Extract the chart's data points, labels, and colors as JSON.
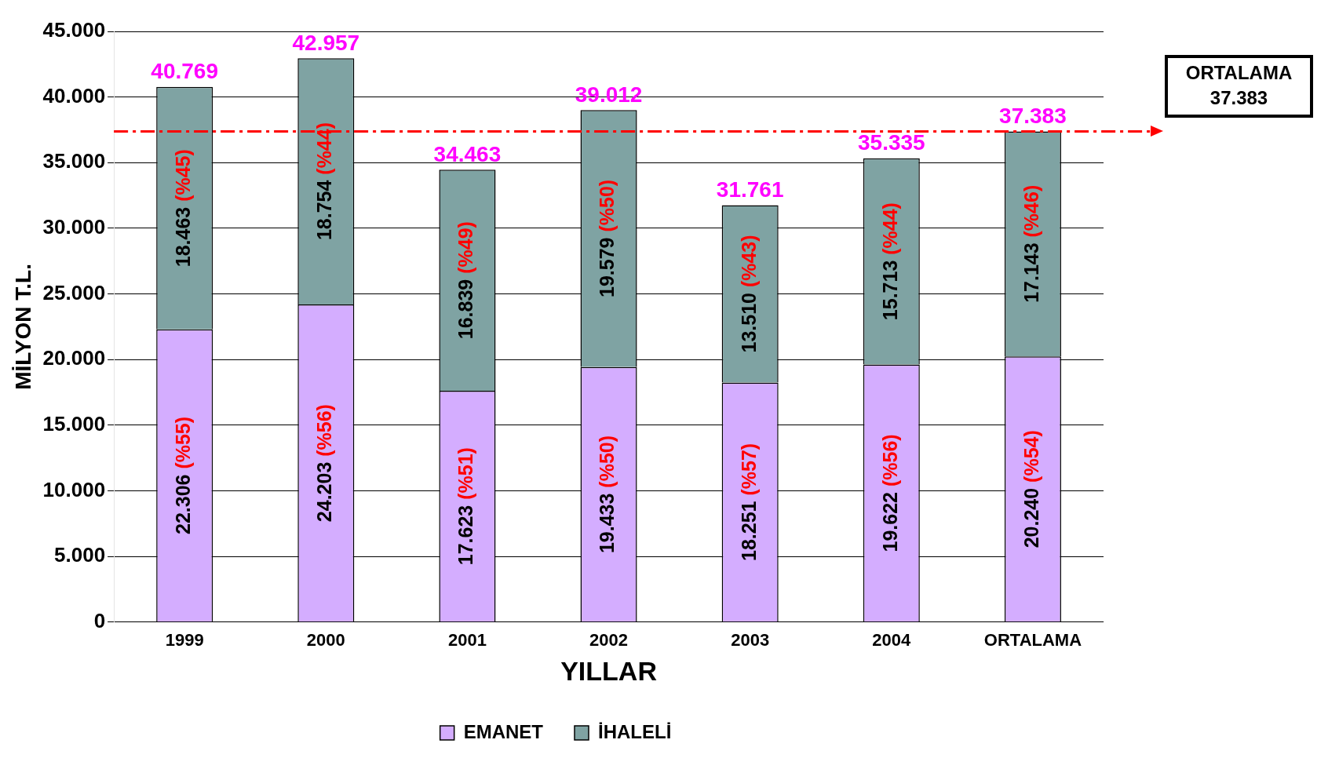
{
  "chart_data": {
    "type": "bar",
    "stacked": true,
    "xlabel": "YILLAR",
    "ylabel": "MİLYON T.L.",
    "categories": [
      "1999",
      "2000",
      "2001",
      "2002",
      "2003",
      "2004",
      "ORTALAMA"
    ],
    "series": [
      {
        "name": "EMANET",
        "color": "#d4adff",
        "values": [
          22306,
          24203,
          17623,
          19433,
          18251,
          19622,
          20240
        ],
        "value_labels": [
          "22.306 (%55)",
          "24.203 (%56)",
          "17.623 (%51)",
          "19.433 (%50)",
          "18.251 (%57)",
          "19.622 (%56)",
          "20.240 (%54)"
        ]
      },
      {
        "name": "İHALELİ",
        "color": "#7fa3a3",
        "values": [
          18463,
          18754,
          16839,
          19579,
          13510,
          15713,
          17143
        ],
        "value_labels": [
          "18.463 (%45)",
          "18.754 (%44)",
          "16.839 (%49)",
          "19.579 (%50)",
          "13.510 (%43)",
          "15.713 (%44)",
          "17.143 (%46)"
        ]
      }
    ],
    "totals": [
      "40.769",
      "42.957",
      "34.463",
      "39.012",
      "31.761",
      "35.335",
      "37.383"
    ],
    "ref_lines": [
      {
        "axis": "y",
        "value": 37383,
        "label": "ORTALAMA 37.383",
        "color": "#ff0000",
        "line_style": "dashed"
      }
    ],
    "ylim": [
      0,
      45000
    ],
    "yticks": [
      {
        "value": 0,
        "label": "0"
      },
      {
        "value": 5000,
        "label": "5.000"
      },
      {
        "value": 10000,
        "label": "10.000"
      },
      {
        "value": 15000,
        "label": "15.000"
      },
      {
        "value": 20000,
        "label": "20.000"
      },
      {
        "value": 25000,
        "label": "25.000"
      },
      {
        "value": 30000,
        "label": "30.000"
      },
      {
        "value": 35000,
        "label": "35.000"
      },
      {
        "value": 40000,
        "label": "40.000"
      },
      {
        "value": 45000,
        "label": "45.000"
      }
    ],
    "grid": "y",
    "legend": "bottom"
  }
}
